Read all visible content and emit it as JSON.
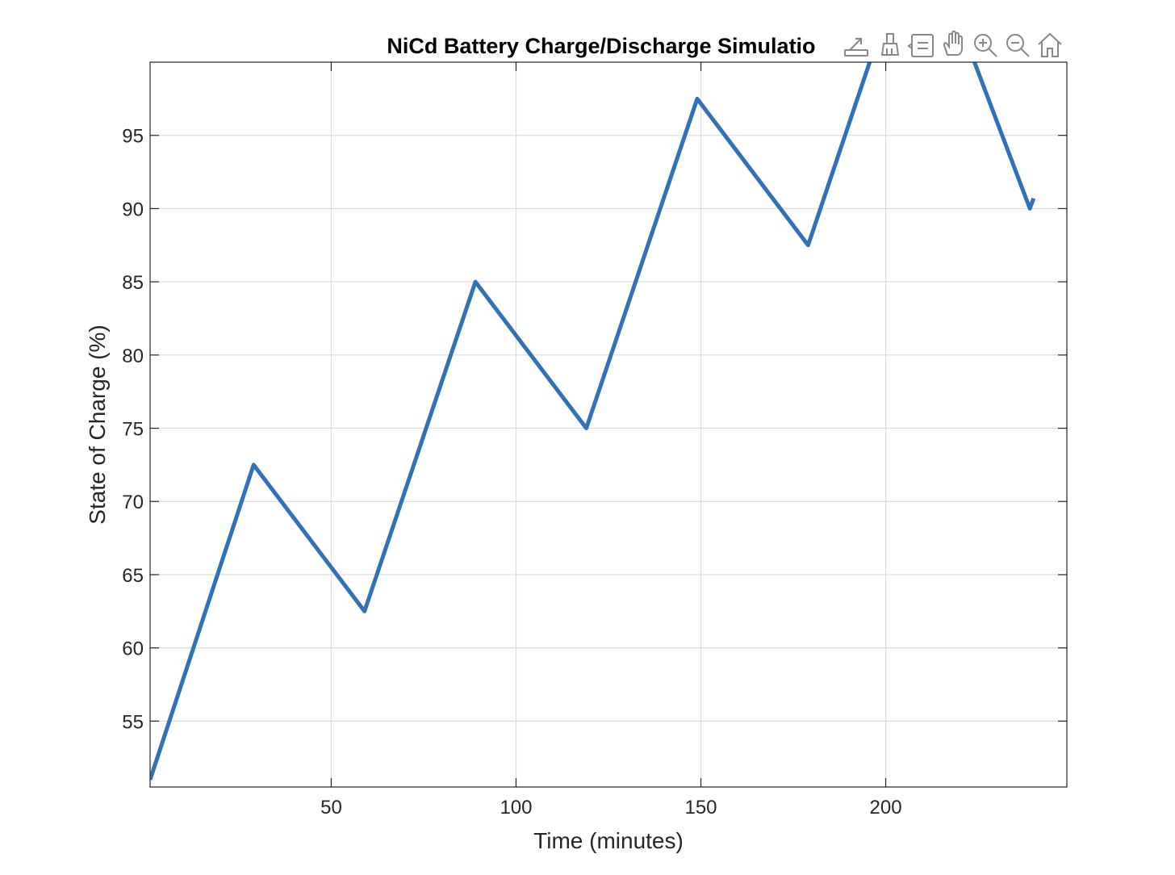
{
  "toolbar": {
    "icons": [
      "export-icon",
      "brush-icon",
      "datatip-icon",
      "pan-hand-icon",
      "zoom-in-icon",
      "zoom-out-icon",
      "home-icon"
    ]
  },
  "chart_data": {
    "type": "line",
    "title": "NiCd Battery Charge/Discharge Simulatio",
    "xlabel": "Time (minutes)",
    "ylabel": "State of Charge (%)",
    "xlim": [
      1,
      249
    ],
    "ylim": [
      50.5,
      100
    ],
    "xticks": [
      50,
      100,
      150,
      200
    ],
    "yticks": [
      55,
      60,
      65,
      70,
      75,
      80,
      85,
      90,
      95
    ],
    "grid": true,
    "color": "#3171b8",
    "series": [
      {
        "x": [
          1,
          29,
          59,
          89,
          119,
          149,
          179,
          209,
          239,
          240
        ],
        "y": [
          51,
          72.5,
          62.5,
          85,
          75,
          97.5,
          87.5,
          110,
          90,
          90.7
        ]
      }
    ]
  }
}
